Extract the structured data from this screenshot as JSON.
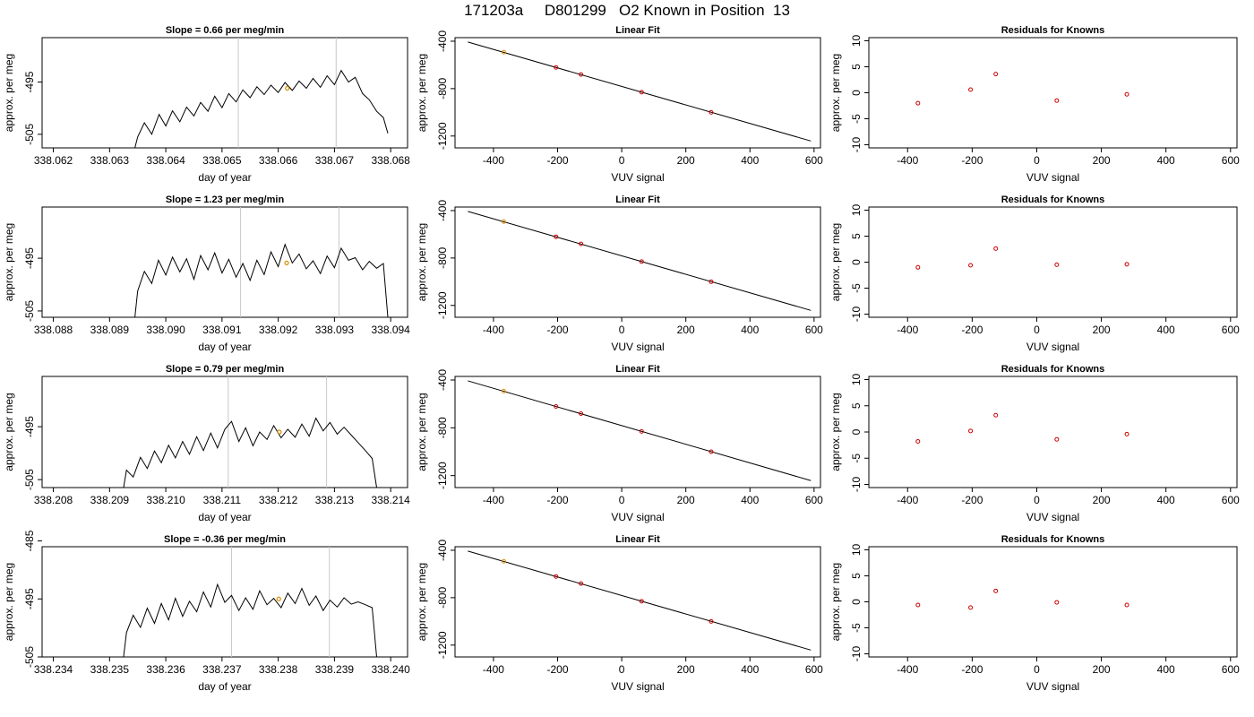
{
  "title": "171203a     D801299   O2 Known in Position  13",
  "colors": {
    "line": "#000000",
    "gridline": "#c8c8c8",
    "marker": "#d98c00",
    "residual": "#cc0000"
  },
  "chart_data": [
    {
      "type": "line",
      "title": "Slope =  0.66  per meg/min",
      "xlabel": "day of year",
      "ylabel": "approx. per meg",
      "xticks": [
        "338.062",
        "338.063",
        "338.064",
        "338.065",
        "338.066",
        "338.067",
        "338.068"
      ],
      "yticks": [
        "-505",
        "-495"
      ],
      "ytick_values": [
        -505,
        -495
      ],
      "xlim": [
        338.0618,
        338.0683
      ],
      "ylim": [
        -507.6,
        -486.5
      ],
      "vlines": [
        338.06529,
        338.06703
      ],
      "marker": [
        338.06616,
        -496.2
      ],
      "x": [
        338.06345,
        338.0635,
        338.06362,
        338.06375,
        338.06388,
        338.064,
        338.06412,
        338.06425,
        338.06437,
        338.0645,
        338.06462,
        338.06475,
        338.06487,
        338.065,
        338.06512,
        338.06525,
        338.06537,
        338.0655,
        338.06562,
        338.06575,
        338.06587,
        338.066,
        338.06612,
        338.06625,
        338.06637,
        338.0665,
        338.06662,
        338.06675,
        338.06687,
        338.067,
        338.06712,
        338.06725,
        338.06737,
        338.0675,
        338.06762,
        338.06775,
        338.06787,
        338.06795
      ],
      "y": [
        -507.6,
        -505.5,
        -502.8,
        -505.0,
        -501.2,
        -503.4,
        -500.5,
        -502.6,
        -499.8,
        -501.5,
        -498.9,
        -500.6,
        -497.7,
        -499.9,
        -497.2,
        -498.8,
        -496.5,
        -498.0,
        -495.9,
        -497.4,
        -495.6,
        -497.0,
        -495.1,
        -496.6,
        -494.8,
        -496.2,
        -494.3,
        -496.0,
        -493.8,
        -495.5,
        -492.8,
        -495.0,
        -494.1,
        -497.2,
        -498.4,
        -500.6,
        -501.8,
        -504.8
      ]
    },
    {
      "type": "line",
      "title": "Slope =  1.23  per meg/min",
      "xlabel": "day of year",
      "ylabel": "approx. per meg",
      "xticks": [
        "338.088",
        "338.089",
        "338.090",
        "338.091",
        "338.092",
        "338.093",
        "338.094"
      ],
      "yticks": [
        "-505",
        "-495"
      ],
      "ytick_values": [
        -505,
        -495
      ],
      "xlim": [
        338.0878,
        338.0943
      ],
      "ylim": [
        -506.2,
        -485.3
      ],
      "vlines": [
        338.09133,
        338.09308
      ],
      "marker": [
        338.09215,
        -495.9
      ],
      "x": [
        338.08945,
        338.0895,
        338.08962,
        338.08975,
        338.08987,
        338.09,
        338.09012,
        338.09025,
        338.09037,
        338.0905,
        338.09062,
        338.09075,
        338.09087,
        338.091,
        338.09112,
        338.09125,
        338.09137,
        338.0915,
        338.09162,
        338.09175,
        338.09187,
        338.092,
        338.09212,
        338.09225,
        338.09237,
        338.0925,
        338.09262,
        338.09275,
        338.09287,
        338.093,
        338.09312,
        338.09325,
        338.09337,
        338.0935,
        338.09362,
        338.09375,
        338.09387,
        338.09395
      ],
      "y": [
        -506.2,
        -501.2,
        -497.5,
        -499.8,
        -495.4,
        -498.2,
        -494.8,
        -497.6,
        -495.1,
        -499.0,
        -494.5,
        -497.2,
        -494.0,
        -497.8,
        -495.2,
        -498.6,
        -496.0,
        -499.2,
        -495.4,
        -498.1,
        -493.8,
        -496.6,
        -492.4,
        -495.9,
        -494.2,
        -497.0,
        -495.5,
        -497.9,
        -494.6,
        -496.8,
        -493.1,
        -495.4,
        -494.9,
        -497.2,
        -495.6,
        -496.9,
        -496.0,
        -506.2
      ]
    },
    {
      "type": "line",
      "title": "Slope =  0.79  per meg/min",
      "xlabel": "day of year",
      "ylabel": "approx. per meg",
      "xticks": [
        "338.208",
        "338.209",
        "338.210",
        "338.211",
        "338.212",
        "338.213",
        "338.214"
      ],
      "yticks": [
        "-505",
        "-495"
      ],
      "ytick_values": [
        -505,
        -495
      ],
      "xlim": [
        338.2078,
        338.2143
      ],
      "ylim": [
        -506.5,
        -485.5
      ],
      "vlines": [
        338.21111,
        338.21286
      ],
      "marker": [
        338.21202,
        -496.0
      ],
      "x": [
        338.20925,
        338.2093,
        338.20942,
        338.20955,
        338.20967,
        338.2098,
        338.20992,
        338.21005,
        338.21017,
        338.2103,
        338.21042,
        338.21055,
        338.21067,
        338.2108,
        338.21092,
        338.21105,
        338.21117,
        338.2113,
        338.21142,
        338.21155,
        338.21167,
        338.2118,
        338.21192,
        338.21205,
        338.21217,
        338.2123,
        338.21242,
        338.21255,
        338.21267,
        338.2128,
        338.21292,
        338.21305,
        338.21317,
        338.2133,
        338.21342,
        338.21355,
        338.21367,
        338.21375
      ],
      "y": [
        -506.5,
        -503.2,
        -504.5,
        -500.8,
        -502.9,
        -499.6,
        -501.8,
        -498.5,
        -500.9,
        -497.8,
        -500.2,
        -496.9,
        -499.5,
        -496.2,
        -499.0,
        -495.5,
        -494.0,
        -497.8,
        -495.2,
        -498.6,
        -496.0,
        -497.4,
        -494.8,
        -497.1,
        -495.5,
        -497.0,
        -494.5,
        -496.8,
        -493.4,
        -495.8,
        -494.2,
        -496.4,
        -495.1,
        -496.6,
        -498.0,
        -499.5,
        -501.0,
        -506.5
      ]
    },
    {
      "type": "line",
      "title": "Slope =  -0.36  per meg/min",
      "xlabel": "day of year",
      "ylabel": "approx. per meg",
      "xticks": [
        "338.234",
        "338.235",
        "338.236",
        "338.237",
        "338.238",
        "338.239",
        "338.240"
      ],
      "yticks": [
        "-505",
        "-495",
        "-485"
      ],
      "ytick_values": [
        -505,
        -495,
        -485
      ],
      "xlim": [
        338.2338,
        338.2403
      ],
      "ylim": [
        -505.0,
        -486.0
      ],
      "vlines": [
        338.23717,
        338.23891
      ],
      "marker": [
        338.23801,
        -495.0
      ],
      "x": [
        338.23525,
        338.2353,
        338.23542,
        338.23555,
        338.23567,
        338.2358,
        338.23592,
        338.23605,
        338.23617,
        338.2363,
        338.23642,
        338.23655,
        338.23667,
        338.2368,
        338.23692,
        338.23705,
        338.23717,
        338.2373,
        338.23742,
        338.23755,
        338.23767,
        338.2378,
        338.23792,
        338.23805,
        338.23817,
        338.2383,
        338.23842,
        338.23855,
        338.23867,
        338.2388,
        338.23892,
        338.23905,
        338.23917,
        338.2393,
        338.23942,
        338.23955,
        338.23967,
        338.23975
      ],
      "y": [
        -505.0,
        -500.8,
        -497.8,
        -499.9,
        -496.6,
        -499.2,
        -495.8,
        -498.6,
        -494.9,
        -498.0,
        -495.4,
        -497.2,
        -493.8,
        -496.4,
        -492.5,
        -495.6,
        -494.4,
        -497.0,
        -494.8,
        -496.8,
        -493.6,
        -496.0,
        -494.9,
        -496.5,
        -494.0,
        -495.8,
        -493.2,
        -496.1,
        -494.5,
        -497.0,
        -495.2,
        -496.4,
        -494.8,
        -495.9,
        -495.5,
        -496.0,
        -496.5,
        -505.0
      ]
    }
  ],
  "linear_fit": {
    "title": "Linear Fit",
    "xlabel": "VUV signal",
    "ylabel": "approx. per meg",
    "xticks": [
      "-400",
      "-200",
      "0",
      "200",
      "400",
      "600"
    ],
    "xtick_values": [
      -400,
      -200,
      0,
      200,
      400,
      600
    ],
    "yticks": [
      "-1200",
      "-800",
      "-400"
    ],
    "ytick_values": [
      -1200,
      -800,
      -400
    ],
    "xlim": [
      -520,
      620
    ],
    "ylim": [
      -1300,
      -370
    ],
    "line": [
      [
        -480,
        -407
      ],
      [
        590,
        -1242
      ]
    ],
    "points": [
      [
        -368,
        -493
      ],
      [
        -205,
        -621
      ],
      [
        -127,
        -681
      ],
      [
        62,
        -830
      ],
      [
        279,
        -1000
      ]
    ],
    "highlight_index": 0
  },
  "residuals": {
    "title": "Residuals for Knowns",
    "xlabel": "VUV signal",
    "ylabel": "approx. per meg",
    "xticks": [
      "-400",
      "-200",
      "0",
      "200",
      "400",
      "600"
    ],
    "xtick_values": [
      -400,
      -200,
      0,
      200,
      400,
      600
    ],
    "yticks": [
      "-10",
      "-5",
      "0",
      "5",
      "10"
    ],
    "ytick_values": [
      -10,
      -5,
      0,
      5,
      10
    ],
    "xlim": [
      -520,
      620
    ],
    "ylim": [
      -10.6,
      10.6
    ],
    "x": [
      -368,
      -205,
      -127,
      62,
      279
    ],
    "values": [
      [
        -2.0,
        0.6,
        3.6,
        -1.5,
        -0.3
      ],
      [
        -1.0,
        -0.6,
        2.6,
        -0.5,
        -0.4
      ],
      [
        -1.8,
        0.2,
        3.2,
        -1.4,
        -0.4
      ],
      [
        -0.6,
        -1.1,
        2.1,
        -0.1,
        -0.6
      ]
    ]
  }
}
